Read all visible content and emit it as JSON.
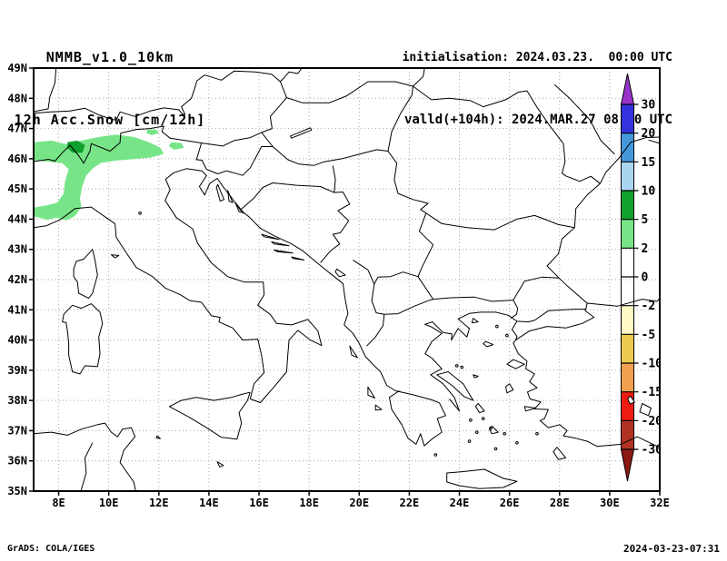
{
  "header": {
    "model_title": "NMMB_v1.0_10km",
    "product_title": "12h Acc.Snow [cm/12h]",
    "init_line": "initialisation: 2024.03.23.  00:00 UTC",
    "valid_line": "valld(+104h): 2024.MAR.27 08:00 UTC"
  },
  "footer": {
    "left": "GrADS: COLA/IGES",
    "right": "2024-03-23-07:31"
  },
  "map": {
    "lat_range": [
      35,
      49
    ],
    "lon_range": [
      7.0,
      32.0
    ],
    "grid_lat_step": 1,
    "grid_lon_step": 2,
    "grid_color": "#a6a6a6",
    "lat_ticks": [
      {
        "value": 49,
        "label": "49N"
      },
      {
        "value": 48,
        "label": "48N"
      },
      {
        "value": 47,
        "label": "47N"
      },
      {
        "value": 46,
        "label": "46N"
      },
      {
        "value": 45,
        "label": "45N"
      },
      {
        "value": 44,
        "label": "44N"
      },
      {
        "value": 43,
        "label": "43N"
      },
      {
        "value": 42,
        "label": "42N"
      },
      {
        "value": 41,
        "label": "41N"
      },
      {
        "value": 40,
        "label": "40N"
      },
      {
        "value": 39,
        "label": "39N"
      },
      {
        "value": 38,
        "label": "38N"
      },
      {
        "value": 37,
        "label": "37N"
      },
      {
        "value": 36,
        "label": "36N"
      },
      {
        "value": 35,
        "label": "35N"
      }
    ],
    "lon_ticks": [
      {
        "value": 8,
        "label": "8E"
      },
      {
        "value": 10,
        "label": "10E"
      },
      {
        "value": 12,
        "label": "12E"
      },
      {
        "value": 14,
        "label": "14E"
      },
      {
        "value": 16,
        "label": "16E"
      },
      {
        "value": 18,
        "label": "18E"
      },
      {
        "value": 20,
        "label": "20E"
      },
      {
        "value": 22,
        "label": "22E"
      },
      {
        "value": 24,
        "label": "24E"
      },
      {
        "value": 26,
        "label": "26E"
      },
      {
        "value": 28,
        "label": "28E"
      },
      {
        "value": 30,
        "label": "30E"
      },
      {
        "value": 32,
        "label": "32E"
      }
    ]
  },
  "colorbar": {
    "labels": [
      "30",
      "20",
      "15",
      "10",
      "5",
      "2",
      "0",
      "-2",
      "-5",
      "-10",
      "-15",
      "-20",
      "-30"
    ],
    "values": [
      30,
      20,
      15,
      10,
      5,
      2,
      0,
      -2,
      -5,
      -10,
      -15,
      -20,
      -30
    ],
    "segment_colors": [
      "#3333dd",
      "#4499dd",
      "#aad5f0",
      "#0fa02d",
      "#77e587",
      "none",
      "none",
      "#fdf9c4",
      "#eccb4e",
      "#f0a050",
      "#ee1c11",
      "#b23222"
    ],
    "over_color": "#9933cc",
    "under_color": "#8a1a12"
  },
  "snow_areas": [
    {
      "name": "alps-band-2-5cm",
      "level": "2-5",
      "color": "#77e587",
      "points": [
        [
          7.0,
          45.95
        ],
        [
          7.05,
          46.55
        ],
        [
          7.7,
          46.6
        ],
        [
          8.3,
          46.48
        ],
        [
          8.9,
          46.6
        ],
        [
          9.6,
          46.72
        ],
        [
          10.3,
          46.8
        ],
        [
          11.0,
          46.72
        ],
        [
          11.6,
          46.55
        ],
        [
          12.05,
          46.37
        ],
        [
          12.2,
          46.17
        ],
        [
          11.7,
          46.04
        ],
        [
          11.0,
          45.99
        ],
        [
          10.3,
          45.94
        ],
        [
          9.7,
          45.87
        ],
        [
          9.4,
          45.7
        ],
        [
          9.1,
          45.45
        ],
        [
          8.95,
          45.1
        ],
        [
          8.85,
          44.7
        ],
        [
          8.9,
          44.4
        ],
        [
          8.65,
          44.1
        ],
        [
          8.3,
          43.96
        ],
        [
          7.9,
          44.05
        ],
        [
          7.55,
          43.98
        ],
        [
          7.0,
          44.1
        ],
        [
          7.0,
          44.38
        ],
        [
          7.5,
          44.45
        ],
        [
          7.95,
          44.55
        ],
        [
          8.2,
          44.85
        ],
        [
          8.25,
          45.25
        ],
        [
          8.4,
          45.65
        ],
        [
          8.15,
          45.85
        ]
      ]
    },
    {
      "name": "tyrol-blob-2-5cm",
      "level": "2-5",
      "color": "#77e587",
      "points": [
        [
          11.5,
          46.85
        ],
        [
          11.55,
          46.97
        ],
        [
          11.9,
          46.97
        ],
        [
          12.0,
          46.85
        ],
        [
          11.7,
          46.78
        ]
      ]
    },
    {
      "name": "carnic-blob-2-5cm",
      "level": "2-5",
      "color": "#77e587",
      "points": [
        [
          12.4,
          46.42
        ],
        [
          12.5,
          46.55
        ],
        [
          12.9,
          46.52
        ],
        [
          13.0,
          46.36
        ],
        [
          12.6,
          46.3
        ]
      ]
    },
    {
      "name": "alps-core-5-10cm",
      "level": "5-10",
      "color": "#0fa02d",
      "points": [
        [
          8.35,
          46.35
        ],
        [
          8.35,
          46.55
        ],
        [
          8.75,
          46.6
        ],
        [
          9.05,
          46.45
        ],
        [
          8.95,
          46.2
        ],
        [
          8.55,
          46.2
        ]
      ]
    }
  ]
}
